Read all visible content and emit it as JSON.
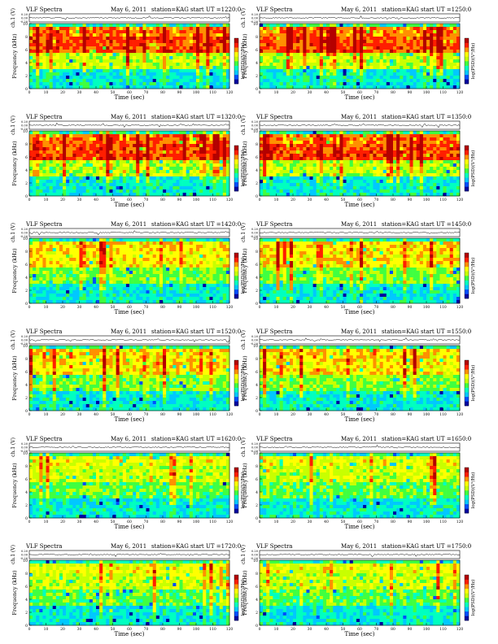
{
  "page": {
    "title": "VLF Spectra"
  },
  "axis_text": {
    "ch1_label": "ch.1 (V)",
    "ch1_yticks": [
      "0.20",
      "0.00",
      "-0.20"
    ],
    "freq_label": "Frequency (kHz)",
    "freq_yticks": [
      "10",
      "8",
      "6",
      "4",
      "2",
      "0"
    ],
    "time_label": "Time (sec)",
    "time_ticks": [
      "0",
      "10",
      "20",
      "30",
      "40",
      "50",
      "60",
      "70",
      "80",
      "90",
      "100",
      "110",
      "120"
    ],
    "cbar_label": "log(PSD)(V²/Hz)"
  },
  "colors": {
    "spectrogram_scale": [
      "#0000a0",
      "#0050ff",
      "#00c8ff",
      "#00ffc0",
      "#40ff40",
      "#c8ff00",
      "#ffff00",
      "#ff9000",
      "#ff1e00",
      "#b40000"
    ],
    "background": "#ffffff",
    "trace": "#000000"
  },
  "chart_data": [
    {
      "type": "heatmap",
      "title": "VLF Spectra",
      "date": "May 6, 2011",
      "station": "station=KAG",
      "start": "start UT =1220:0",
      "xlabel": "Time (sec)",
      "ylabel": "Frequency (kHz)",
      "xlim": [
        0,
        120
      ],
      "ylim": [
        0,
        10
      ],
      "colorbar_label": "log(PSD)(V²/Hz)",
      "activity": "high"
    },
    {
      "type": "heatmap",
      "title": "VLF Spectra",
      "date": "May 6, 2011",
      "station": "station=KAG",
      "start": "start UT =1250:0",
      "xlabel": "Time (sec)",
      "ylabel": "Frequency (kHz)",
      "xlim": [
        0,
        120
      ],
      "ylim": [
        0,
        10
      ],
      "colorbar_label": "log(PSD)(V²/Hz)",
      "activity": "high"
    },
    {
      "type": "heatmap",
      "title": "VLF Spectra",
      "date": "May 6, 2011",
      "station": "station=KAG",
      "start": "start UT =1320:0",
      "xlabel": "Time (sec)",
      "ylabel": "Frequency (kHz)",
      "xlim": [
        0,
        120
      ],
      "ylim": [
        0,
        10
      ],
      "colorbar_label": "log(PSD)(V²/Hz)",
      "activity": "high"
    },
    {
      "type": "heatmap",
      "title": "VLF Spectra",
      "date": "May 6, 2011",
      "station": "station=KAG",
      "start": "start UT =1350:0",
      "xlabel": "Time (sec)",
      "ylabel": "Frequency (kHz)",
      "xlim": [
        0,
        120
      ],
      "ylim": [
        0,
        10
      ],
      "colorbar_label": "log(PSD)(V²/Hz)",
      "activity": "high"
    },
    {
      "type": "heatmap",
      "title": "VLF Spectra",
      "date": "May 6, 2011",
      "station": "station=KAG",
      "start": "start UT =1420:0",
      "xlabel": "Time (sec)",
      "ylabel": "Frequency (kHz)",
      "xlim": [
        0,
        120
      ],
      "ylim": [
        0,
        10
      ],
      "colorbar_label": "log(PSD)(V²/Hz)",
      "activity": "medium"
    },
    {
      "type": "heatmap",
      "title": "VLF Spectra",
      "date": "May 6, 2011",
      "station": "station=KAG",
      "start": "start UT =1450:0",
      "xlabel": "Time (sec)",
      "ylabel": "Frequency (kHz)",
      "xlim": [
        0,
        120
      ],
      "ylim": [
        0,
        10
      ],
      "colorbar_label": "log(PSD)(V²/Hz)",
      "activity": "medium"
    },
    {
      "type": "heatmap",
      "title": "VLF Spectra",
      "date": "May 6, 2011",
      "station": "station=KAG",
      "start": "start UT =1520:0",
      "xlabel": "Time (sec)",
      "ylabel": "Frequency (kHz)",
      "xlim": [
        0,
        120
      ],
      "ylim": [
        0,
        10
      ],
      "colorbar_label": "log(PSD)(V²/Hz)",
      "activity": "medium"
    },
    {
      "type": "heatmap",
      "title": "VLF Spectra",
      "date": "May 6, 2011",
      "station": "station=KAG",
      "start": "start UT =1550:0",
      "xlabel": "Time (sec)",
      "ylabel": "Frequency (kHz)",
      "xlim": [
        0,
        120
      ],
      "ylim": [
        0,
        10
      ],
      "colorbar_label": "log(PSD)(V²/Hz)",
      "activity": "medium"
    },
    {
      "type": "heatmap",
      "title": "VLF Spectra",
      "date": "May 6, 2011",
      "station": "station=KAG",
      "start": "start UT =1620:0",
      "xlabel": "Time (sec)",
      "ylabel": "Frequency (kHz)",
      "xlim": [
        0,
        120
      ],
      "ylim": [
        0,
        10
      ],
      "colorbar_label": "log(PSD)(V²/Hz)",
      "activity": "low"
    },
    {
      "type": "heatmap",
      "title": "VLF Spectra",
      "date": "May 6, 2011",
      "station": "station=KAG",
      "start": "start UT =1650:0",
      "xlabel": "Time (sec)",
      "ylabel": "Frequency (kHz)",
      "xlim": [
        0,
        120
      ],
      "ylim": [
        0,
        10
      ],
      "colorbar_label": "log(PSD)(V²/Hz)",
      "activity": "low"
    },
    {
      "type": "heatmap",
      "title": "VLF Spectra",
      "date": "May 6, 2011",
      "station": "station=KAG",
      "start": "start UT =1720:0",
      "xlabel": "Time (sec)",
      "ylabel": "Frequency (kHz)",
      "xlim": [
        0,
        120
      ],
      "ylim": [
        0,
        10
      ],
      "colorbar_label": "log(PSD)(V²/Hz)",
      "activity": "low"
    },
    {
      "type": "heatmap",
      "title": "VLF Spectra",
      "date": "May 6, 2011",
      "station": "station=KAG",
      "start": "start UT =1750:0",
      "xlabel": "Time (sec)",
      "ylabel": "Frequency (kHz)",
      "xlim": [
        0,
        120
      ],
      "ylim": [
        0,
        10
      ],
      "colorbar_label": "log(PSD)(V²/Hz)",
      "activity": "low"
    }
  ]
}
